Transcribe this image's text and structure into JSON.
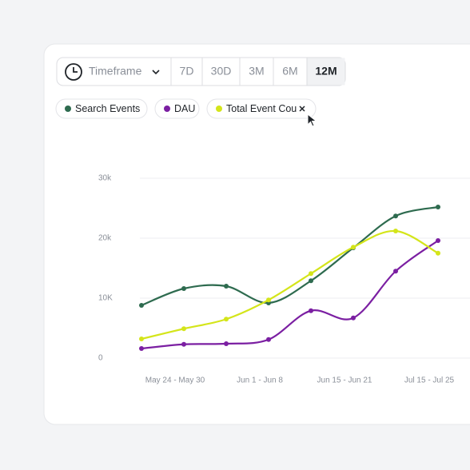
{
  "toolbar": {
    "timeframe": "Timeframe",
    "ranges": [
      "7D",
      "30D",
      "3M",
      "6M",
      "12M"
    ],
    "selected": 4
  },
  "chart_data": {
    "type": "line",
    "categories": [
      null,
      "May 24 - May 30",
      null,
      "Jun 1 - Jun 8",
      null,
      "Jun 15 - Jun 21",
      null,
      "Jul 15 - Jul 25"
    ],
    "series": [
      {
        "name": "Search Events",
        "color": "#2e6b4f",
        "values": [
          8800,
          11600,
          12000,
          9200,
          12900,
          18400,
          23700,
          25200
        ]
      },
      {
        "name": "DAU",
        "color": "#7b1fa2",
        "values": [
          1600,
          2300,
          2400,
          3100,
          7900,
          6700,
          14500,
          19600
        ]
      },
      {
        "name": "Total Event Cou",
        "color": "#d4e51a",
        "values": [
          3200,
          4900,
          6500,
          9700,
          14100,
          18500,
          21200,
          17500
        ]
      }
    ],
    "ylim": [
      0,
      30000
    ],
    "yticks": [
      0,
      {
        "value": 10000,
        "label": "10K"
      },
      {
        "value": 20000,
        "label": "20k"
      },
      {
        "value": 30000,
        "label": "30k"
      }
    ],
    "grid": true
  }
}
